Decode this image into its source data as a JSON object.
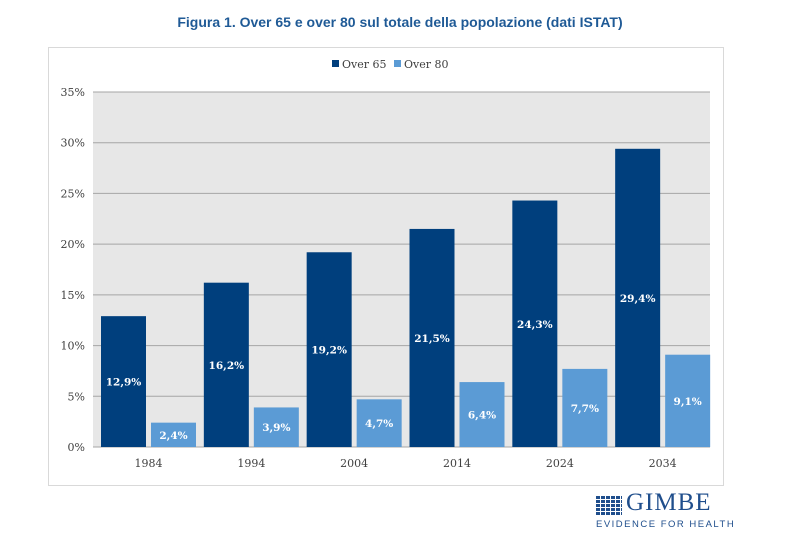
{
  "chart_data": {
    "type": "bar",
    "title": "Figura 1. Over 65 e over 80 sul totale della popolazione (dati ISTAT)",
    "categories": [
      "1984",
      "1994",
      "2004",
      "2014",
      "2024",
      "2034"
    ],
    "series": [
      {
        "name": "Over 65",
        "color": "#003f7d",
        "values": [
          12.9,
          16.2,
          19.2,
          21.5,
          24.3,
          29.4
        ],
        "labels": [
          "12,9%",
          "16,2%",
          "19,2%",
          "21,5%",
          "24,3%",
          "29,4%"
        ]
      },
      {
        "name": "Over 80",
        "color": "#5b9bd5",
        "values": [
          2.4,
          3.9,
          4.7,
          6.4,
          7.7,
          9.1
        ],
        "labels": [
          "2,4%",
          "3,9%",
          "4,7%",
          "6,4%",
          "7,7%",
          "9,1%"
        ]
      }
    ],
    "ylim": [
      0,
      35
    ],
    "yticks": [
      0,
      5,
      10,
      15,
      20,
      25,
      30,
      35
    ],
    "ytick_labels": [
      "0%",
      "5%",
      "10%",
      "15%",
      "20%",
      "25%",
      "30%",
      "35%"
    ],
    "xlabel": "",
    "ylabel": "",
    "grid": true,
    "legend": "top-center"
  },
  "logo": {
    "name": "GIMBE",
    "tagline": "EVIDENCE FOR HEALTH"
  }
}
